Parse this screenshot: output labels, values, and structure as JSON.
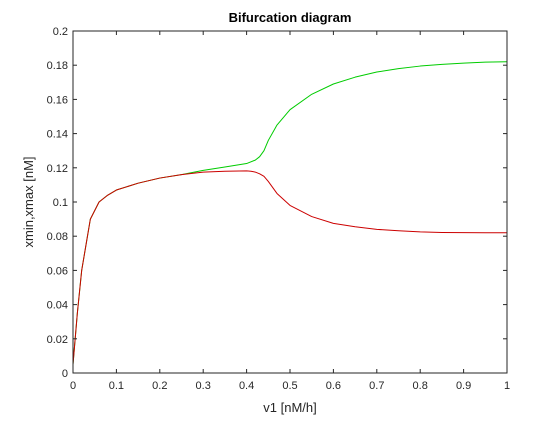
{
  "chart_data": {
    "type": "line",
    "title": "Bifurcation diagram",
    "xlabel": "v1 [nM/h]",
    "ylabel": "xmin,xmax [nM]",
    "xlim": [
      0,
      1
    ],
    "ylim": [
      0,
      0.2
    ],
    "xticks": [
      0,
      0.1,
      0.2,
      0.3,
      0.4,
      0.5,
      0.6,
      0.7,
      0.8,
      0.9,
      1
    ],
    "xtick_labels": [
      "0",
      "0.1",
      "0.2",
      "0.3",
      "0.4",
      "0.5",
      "0.6",
      "0.7",
      "0.8",
      "0.9",
      "1"
    ],
    "yticks": [
      0,
      0.02,
      0.04,
      0.06,
      0.08,
      0.1,
      0.12,
      0.14,
      0.16,
      0.18,
      0.2
    ],
    "ytick_labels": [
      "0",
      "0.02",
      "0.04",
      "0.06",
      "0.08",
      "0.1",
      "0.12",
      "0.14",
      "0.16",
      "0.18",
      "0.2"
    ],
    "grid": false,
    "legend": "none",
    "series": [
      {
        "color": "#00cc00",
        "x": [
          0,
          0.01,
          0.02,
          0.03,
          0.04,
          0.06,
          0.08,
          0.1,
          0.15,
          0.2,
          0.25,
          0.3,
          0.35,
          0.4,
          0.42,
          0.43,
          0.44,
          0.45,
          0.47,
          0.5,
          0.55,
          0.6,
          0.65,
          0.7,
          0.75,
          0.8,
          0.85,
          0.9,
          0.95,
          1.0
        ],
        "y": [
          0.005,
          0.035,
          0.06,
          0.075,
          0.09,
          0.1,
          0.104,
          0.107,
          0.111,
          0.114,
          0.116,
          0.1185,
          0.1205,
          0.1225,
          0.1245,
          0.1265,
          0.13,
          0.136,
          0.145,
          0.154,
          0.163,
          0.169,
          0.173,
          0.176,
          0.178,
          0.1795,
          0.1805,
          0.1812,
          0.1818,
          0.182
        ]
      },
      {
        "color": "#cc0000",
        "x": [
          0,
          0.01,
          0.02,
          0.03,
          0.04,
          0.06,
          0.08,
          0.1,
          0.15,
          0.2,
          0.25,
          0.3,
          0.35,
          0.4,
          0.41,
          0.42,
          0.43,
          0.44,
          0.45,
          0.47,
          0.5,
          0.55,
          0.6,
          0.65,
          0.7,
          0.75,
          0.8,
          0.85,
          0.9,
          0.95,
          1.0
        ],
        "y": [
          0.005,
          0.035,
          0.06,
          0.075,
          0.09,
          0.1,
          0.104,
          0.107,
          0.111,
          0.114,
          0.116,
          0.1175,
          0.118,
          0.1182,
          0.118,
          0.1175,
          0.1165,
          0.115,
          0.112,
          0.105,
          0.098,
          0.0915,
          0.0875,
          0.0855,
          0.084,
          0.0832,
          0.0825,
          0.0822,
          0.0821,
          0.082,
          0.082
        ]
      }
    ]
  }
}
